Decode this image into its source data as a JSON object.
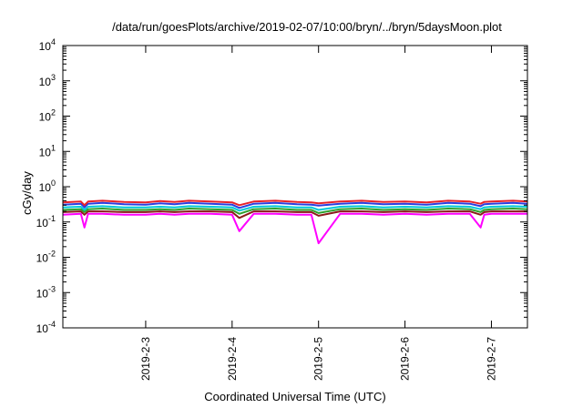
{
  "chart_data": {
    "type": "line",
    "title": "/data/run/goesPlots/archive/2019-02-07/10:00/bryn/../bryn/5daysMoon.plot",
    "xlabel": "Coordinated Universal Time (UTC)",
    "ylabel": "cGy/day",
    "yscale": "log",
    "ylim": [
      0.0001,
      10000
    ],
    "xlim": [
      "2019-02-02T01:00",
      "2019-02-07T10:00"
    ],
    "y_ticks": [
      {
        "base": "10",
        "exp": "-4",
        "value": 0.0001
      },
      {
        "base": "10",
        "exp": "-3",
        "value": 0.001
      },
      {
        "base": "10",
        "exp": "-2",
        "value": 0.01
      },
      {
        "base": "10",
        "exp": "-1",
        "value": 0.1
      },
      {
        "base": "10",
        "exp": "0",
        "value": 1
      },
      {
        "base": "10",
        "exp": "1",
        "value": 10
      },
      {
        "base": "10",
        "exp": "2",
        "value": 100
      },
      {
        "base": "10",
        "exp": "3",
        "value": 1000
      },
      {
        "base": "10",
        "exp": "4",
        "value": 10000
      }
    ],
    "x_ticks": [
      "2019-2-3",
      "2019-2-4",
      "2019-2-5",
      "2019-2-6",
      "2019-2-7"
    ],
    "x_tick_times": [
      "2019-02-03T00:00",
      "2019-02-04T00:00",
      "2019-02-05T00:00",
      "2019-02-06T00:00",
      "2019-02-07T00:00"
    ],
    "grid": false,
    "legend": "none",
    "x": [
      "2019-02-02T01:00",
      "2019-02-02T06:00",
      "2019-02-02T07:00",
      "2019-02-02T08:00",
      "2019-02-02T12:00",
      "2019-02-02T18:00",
      "2019-02-03T00:00",
      "2019-02-03T04:00",
      "2019-02-03T08:00",
      "2019-02-03T12:00",
      "2019-02-03T18:00",
      "2019-02-04T00:00",
      "2019-02-04T02:00",
      "2019-02-04T06:00",
      "2019-02-04T12:00",
      "2019-02-04T18:00",
      "2019-02-04T22:00",
      "2019-02-05T00:00",
      "2019-02-05T06:00",
      "2019-02-05T12:00",
      "2019-02-05T18:00",
      "2019-02-06T00:00",
      "2019-02-06T06:00",
      "2019-02-06T12:00",
      "2019-02-06T18:00",
      "2019-02-06T21:00",
      "2019-02-06T22:00",
      "2019-02-07T00:00",
      "2019-02-07T06:00",
      "2019-02-07T10:00"
    ],
    "series": [
      {
        "color": "#e8222a",
        "values": [
          0.36,
          0.38,
          0.3,
          0.38,
          0.4,
          0.37,
          0.36,
          0.39,
          0.37,
          0.4,
          0.38,
          0.36,
          0.3,
          0.38,
          0.4,
          0.37,
          0.36,
          0.34,
          0.38,
          0.4,
          0.37,
          0.38,
          0.36,
          0.4,
          0.38,
          0.33,
          0.37,
          0.38,
          0.4,
          0.38
        ]
      },
      {
        "color": "#2a3fe0",
        "values": [
          0.31,
          0.33,
          0.26,
          0.33,
          0.35,
          0.32,
          0.31,
          0.34,
          0.32,
          0.35,
          0.33,
          0.31,
          0.25,
          0.33,
          0.35,
          0.32,
          0.31,
          0.29,
          0.33,
          0.35,
          0.32,
          0.33,
          0.31,
          0.35,
          0.33,
          0.28,
          0.32,
          0.33,
          0.35,
          0.33
        ]
      },
      {
        "color": "#00c8d8",
        "values": [
          0.26,
          0.27,
          0.22,
          0.27,
          0.28,
          0.26,
          0.26,
          0.27,
          0.26,
          0.28,
          0.27,
          0.26,
          0.21,
          0.27,
          0.28,
          0.26,
          0.26,
          0.22,
          0.27,
          0.28,
          0.26,
          0.27,
          0.26,
          0.28,
          0.27,
          0.23,
          0.26,
          0.27,
          0.28,
          0.27
        ]
      },
      {
        "color": "#2ca02c",
        "values": [
          0.22,
          0.23,
          0.19,
          0.23,
          0.24,
          0.22,
          0.22,
          0.23,
          0.22,
          0.24,
          0.23,
          0.22,
          0.17,
          0.23,
          0.24,
          0.22,
          0.22,
          0.18,
          0.23,
          0.24,
          0.22,
          0.23,
          0.22,
          0.24,
          0.23,
          0.19,
          0.22,
          0.23,
          0.24,
          0.23
        ]
      },
      {
        "color": "#8b1a1a",
        "values": [
          0.19,
          0.2,
          0.16,
          0.2,
          0.2,
          0.19,
          0.19,
          0.2,
          0.19,
          0.2,
          0.2,
          0.19,
          0.13,
          0.2,
          0.2,
          0.19,
          0.19,
          0.15,
          0.2,
          0.2,
          0.19,
          0.2,
          0.19,
          0.2,
          0.2,
          0.16,
          0.19,
          0.2,
          0.2,
          0.2
        ]
      },
      {
        "color": "#ff00ff",
        "values": [
          0.16,
          0.17,
          0.07,
          0.17,
          0.17,
          0.16,
          0.16,
          0.17,
          0.16,
          0.17,
          0.17,
          0.16,
          0.055,
          0.17,
          0.17,
          0.16,
          0.16,
          0.025,
          0.17,
          0.17,
          0.16,
          0.17,
          0.16,
          0.17,
          0.17,
          0.07,
          0.16,
          0.17,
          0.17,
          0.17
        ]
      }
    ]
  }
}
